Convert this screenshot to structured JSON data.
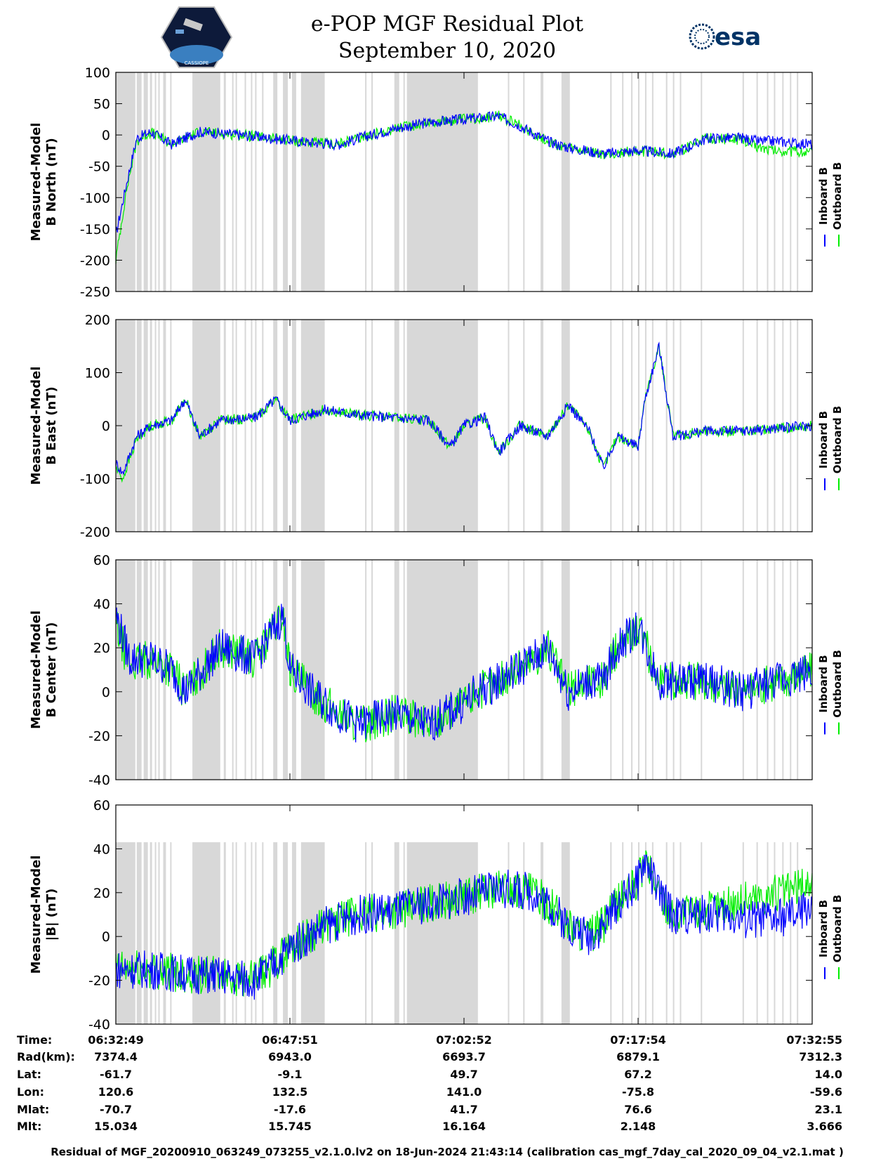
{
  "header": {
    "title": "e-POP MGF Residual Plot",
    "date": "September 10, 2020",
    "esa_logo_text": "esa",
    "cassiope_logo_text": "CASSIOPE"
  },
  "colors": {
    "inboard": "#0000ff",
    "outboard": "#00ee00",
    "data_gap": "#d8d8d8"
  },
  "chart_data": [
    {
      "type": "line",
      "id": "north",
      "ylabel_line1": "Measured-Model",
      "ylabel_line2": "B North (nT)",
      "ylim": [
        -250,
        100
      ],
      "yticks": [
        "100",
        "50",
        "0",
        "-50",
        "-100",
        "-150",
        "-200",
        "-250"
      ],
      "legend": [
        "Inboard B",
        "Outboard B"
      ],
      "series": [
        {
          "name": "Inboard B",
          "x": [
            0,
            1.5,
            3,
            5,
            8,
            12,
            18,
            22,
            28,
            32,
            35,
            40,
            45,
            50,
            55,
            58,
            62,
            65,
            70,
            75,
            80,
            85,
            90,
            92,
            95,
            100
          ],
          "values": [
            -160,
            -80,
            -5,
            5,
            -15,
            5,
            0,
            -5,
            -12,
            -15,
            -5,
            10,
            20,
            25,
            30,
            15,
            -10,
            -20,
            -30,
            -25,
            -30,
            -5,
            -5,
            -10,
            -10,
            -15
          ]
        },
        {
          "name": "Outboard B",
          "x": [
            0,
            1.5,
            3,
            5,
            8,
            12,
            18,
            22,
            28,
            32,
            35,
            40,
            45,
            50,
            55,
            58,
            62,
            65,
            70,
            75,
            80,
            85,
            90,
            92,
            95,
            100
          ],
          "values": [
            -200,
            -90,
            -10,
            5,
            -15,
            5,
            0,
            -5,
            -12,
            -15,
            -5,
            10,
            20,
            25,
            30,
            15,
            -10,
            -22,
            -32,
            -25,
            -30,
            -5,
            -8,
            -18,
            -25,
            -28
          ]
        }
      ]
    },
    {
      "type": "line",
      "id": "east",
      "ylabel_line1": "Measured-Model",
      "ylabel_line2": "B East (nT)",
      "ylim": [
        -200,
        200
      ],
      "yticks": [
        "200",
        "100",
        "0",
        "-100",
        "-200"
      ],
      "legend": [
        "Inboard B",
        "Outboard B"
      ],
      "series": [
        {
          "name": "Inboard B",
          "x": [
            0,
            1,
            3,
            5,
            8,
            10,
            12,
            15,
            20,
            23,
            25,
            30,
            35,
            40,
            45,
            48,
            50,
            53,
            55,
            58,
            62,
            65,
            68,
            70,
            72,
            75,
            76,
            78,
            80,
            85,
            90,
            95,
            100
          ],
          "values": [
            -70,
            -90,
            -20,
            0,
            10,
            50,
            -20,
            10,
            15,
            50,
            10,
            30,
            20,
            15,
            10,
            -40,
            0,
            15,
            -50,
            0,
            -20,
            40,
            -10,
            -80,
            -20,
            -40,
            50,
            150,
            -20,
            -10,
            -10,
            -5,
            0
          ]
        },
        {
          "name": "Outboard B",
          "x": [
            0,
            1,
            3,
            5,
            8,
            10,
            12,
            15,
            20,
            23,
            25,
            30,
            35,
            40,
            45,
            48,
            50,
            53,
            55,
            58,
            62,
            65,
            68,
            70,
            72,
            75,
            76,
            78,
            80,
            85,
            90,
            95,
            100
          ],
          "values": [
            -80,
            -100,
            -25,
            0,
            10,
            50,
            -20,
            10,
            15,
            50,
            10,
            30,
            20,
            15,
            10,
            -40,
            0,
            15,
            -50,
            0,
            -20,
            40,
            -10,
            -80,
            -20,
            -40,
            50,
            150,
            -20,
            -10,
            -10,
            -5,
            0
          ]
        }
      ]
    },
    {
      "type": "line",
      "id": "center",
      "ylabel_line1": "Measured-Model",
      "ylabel_line2": "B Center (nT)",
      "ylim": [
        -40,
        60
      ],
      "yticks": [
        "60",
        "40",
        "20",
        "0",
        "-20",
        "-40"
      ],
      "legend": [
        "Inboard B",
        "Outboard B"
      ],
      "series": [
        {
          "name": "Inboard B",
          "x": [
            0,
            2,
            5,
            8,
            10,
            15,
            20,
            24,
            25,
            28,
            32,
            35,
            40,
            45,
            50,
            52,
            55,
            60,
            62,
            65,
            68,
            70,
            72,
            75,
            78,
            80,
            85,
            90,
            95,
            100
          ],
          "values": [
            35,
            15,
            15,
            10,
            0,
            20,
            15,
            35,
            10,
            0,
            -10,
            -15,
            -10,
            -15,
            -5,
            0,
            5,
            15,
            20,
            0,
            5,
            5,
            20,
            30,
            5,
            5,
            5,
            0,
            5,
            10
          ]
        },
        {
          "name": "Outboard B",
          "x": [
            0,
            2,
            5,
            8,
            10,
            15,
            20,
            24,
            25,
            28,
            32,
            35,
            40,
            45,
            50,
            52,
            55,
            60,
            62,
            65,
            68,
            70,
            72,
            75,
            78,
            80,
            85,
            90,
            95,
            100
          ],
          "values": [
            30,
            12,
            15,
            10,
            0,
            20,
            15,
            35,
            10,
            0,
            -10,
            -15,
            -10,
            -15,
            -5,
            0,
            5,
            15,
            20,
            0,
            5,
            5,
            20,
            30,
            5,
            5,
            5,
            0,
            5,
            10
          ]
        }
      ]
    },
    {
      "type": "line",
      "id": "total",
      "ylabel_line1": "Measured-Model",
      "ylabel_line2": "|B| (nT)",
      "ylim": [
        -40,
        60
      ],
      "yticks": [
        "60",
        "40",
        "20",
        "0",
        "-20",
        "-40"
      ],
      "legend": [
        "Inboard B",
        "Outboard B"
      ],
      "series": [
        {
          "name": "Inboard B",
          "x": [
            0,
            2,
            5,
            10,
            15,
            20,
            22,
            25,
            30,
            35,
            40,
            45,
            50,
            55,
            60,
            62,
            65,
            68,
            70,
            72,
            75,
            76,
            78,
            80,
            85,
            88,
            90,
            95,
            98,
            100
          ],
          "values": [
            -15,
            -15,
            -15,
            -17,
            -18,
            -20,
            -15,
            -5,
            5,
            10,
            12,
            15,
            18,
            22,
            20,
            15,
            5,
            0,
            5,
            15,
            25,
            35,
            20,
            10,
            10,
            10,
            8,
            8,
            10,
            15
          ]
        },
        {
          "name": "Outboard B",
          "x": [
            0,
            2,
            5,
            10,
            15,
            20,
            22,
            25,
            30,
            35,
            40,
            45,
            50,
            55,
            60,
            62,
            65,
            68,
            70,
            72,
            75,
            76,
            78,
            80,
            85,
            88,
            90,
            95,
            98,
            100
          ],
          "values": [
            -15,
            -15,
            -15,
            -17,
            -18,
            -20,
            -15,
            -5,
            5,
            10,
            12,
            15,
            18,
            22,
            20,
            15,
            5,
            0,
            5,
            15,
            25,
            35,
            20,
            10,
            12,
            15,
            17,
            20,
            22,
            25
          ]
        }
      ]
    }
  ],
  "orbit_table": {
    "row_labels": [
      "Time:",
      "Rad(km):",
      "Lat:",
      "Lon:",
      "Mlat:",
      "Mlt:"
    ],
    "columns": [
      {
        "time": "06:32:49",
        "rad": "7374.4",
        "lat": "-61.7",
        "lon": "120.6",
        "mlat": "-70.7",
        "mlt": "15.034"
      },
      {
        "time": "06:47:51",
        "rad": "6943.0",
        "lat": "-9.1",
        "lon": "132.5",
        "mlat": "-17.6",
        "mlt": "15.745"
      },
      {
        "time": "07:02:52",
        "rad": "6693.7",
        "lat": "49.7",
        "lon": "141.0",
        "mlat": "41.7",
        "mlt": "16.164"
      },
      {
        "time": "07:17:54",
        "rad": "6879.1",
        "lat": "67.2",
        "lon": "-75.8",
        "mlat": "76.6",
        "mlt": "2.148"
      },
      {
        "time": "07:32:55",
        "rad": "7312.3",
        "lat": "14.0",
        "lon": "-59.6",
        "mlat": "23.1",
        "mlt": "3.666"
      }
    ]
  },
  "footer": "Residual of MGF_20200910_063249_073255_v2.1.0.lv2 on 18-Jun-2024 21:43:14 (calibration cas_mgf_7day_cal_2020_09_04_v2.1.mat )"
}
